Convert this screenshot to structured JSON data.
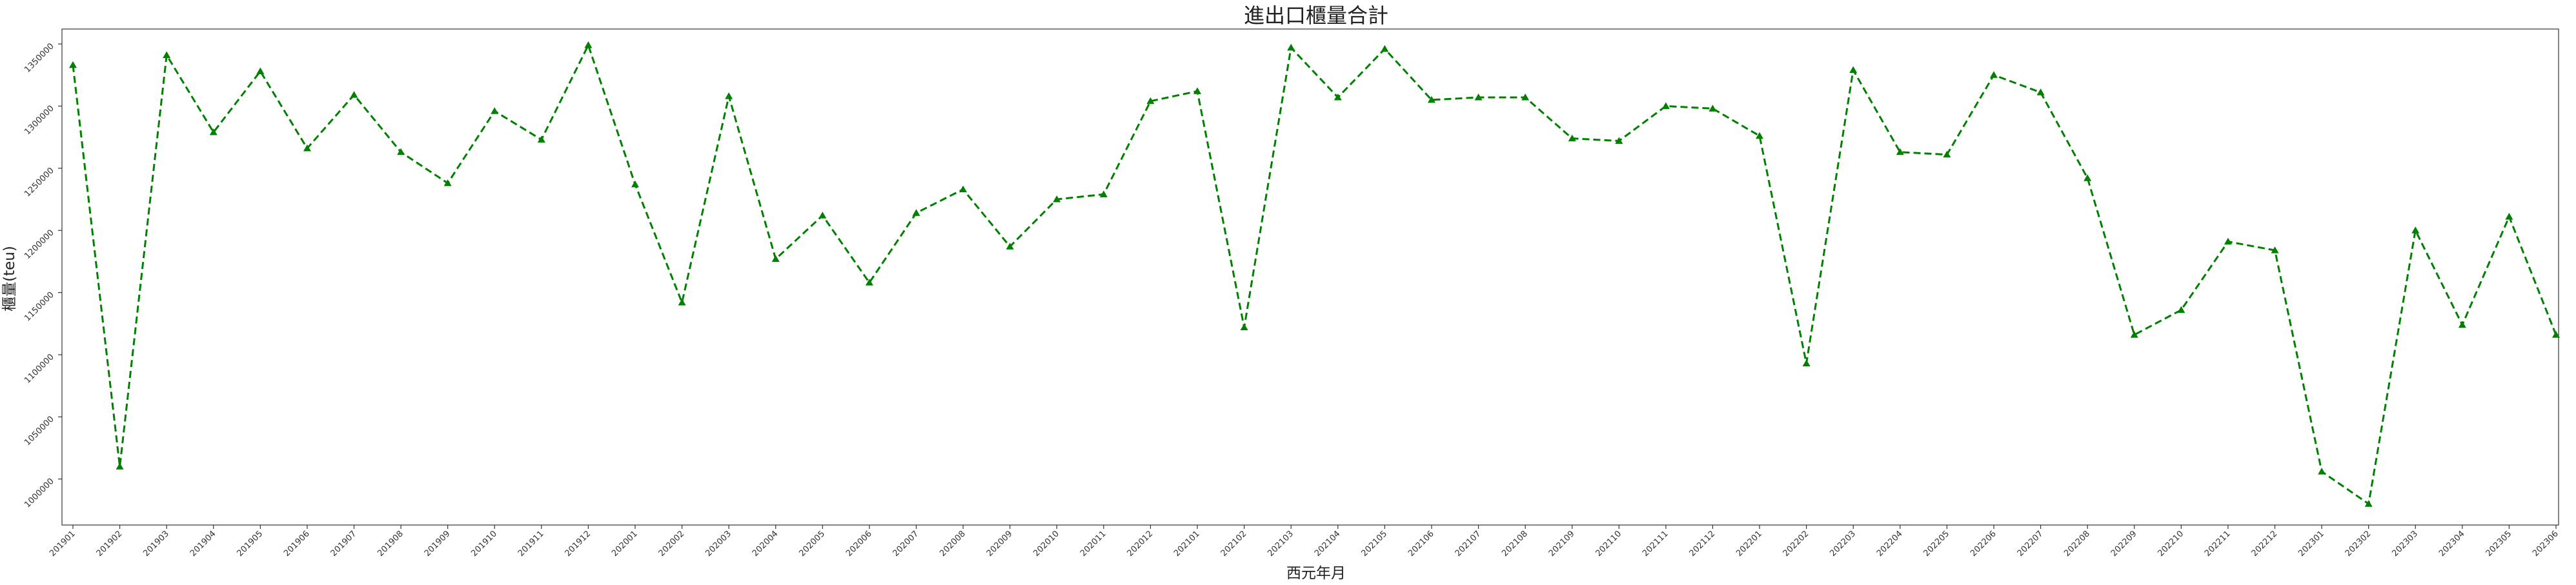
{
  "chart_data": {
    "type": "line",
    "title": "進出口櫃量合計",
    "xlabel": "西元年月",
    "ylabel": "櫃量(teu)",
    "categories": [
      "201901",
      "201902",
      "201903",
      "201904",
      "201905",
      "201906",
      "201907",
      "201908",
      "201909",
      "201910",
      "201911",
      "201912",
      "202001",
      "202002",
      "202003",
      "202004",
      "202005",
      "202006",
      "202007",
      "202008",
      "202009",
      "202010",
      "202011",
      "202012",
      "202101",
      "202102",
      "202103",
      "202104",
      "202105",
      "202106",
      "202107",
      "202108",
      "202109",
      "202110",
      "202111",
      "202112",
      "202201",
      "202202",
      "202203",
      "202204",
      "202205",
      "202206",
      "202207",
      "202208",
      "202209",
      "202210",
      "202211",
      "202212",
      "202301",
      "202302",
      "202303",
      "202304",
      "202305",
      "202306"
    ],
    "ylim": [
      963000,
      1362000
    ],
    "yticks": [
      1000000,
      1050000,
      1100000,
      1150000,
      1200000,
      1250000,
      1300000,
      1350000
    ],
    "ytick_labels": [
      "1000000",
      "1050000",
      "1100000",
      "1150000",
      "1200000",
      "1250000",
      "1300000",
      "1350000"
    ],
    "series": [
      {
        "color": "#008000",
        "linestyle": "dashed",
        "marker": "triangle",
        "values": [
          1333000,
          1010000,
          1341000,
          1279000,
          1328000,
          1266000,
          1309000,
          1263000,
          1238000,
          1296000,
          1273000,
          1349000,
          1237000,
          1142000,
          1308000,
          1177000,
          1212000,
          1158000,
          1214000,
          1233000,
          1187000,
          1225000,
          1229000,
          1304000,
          1312000,
          1122000,
          1347000,
          1307000,
          1346000,
          1305000,
          1307000,
          1307000,
          1274000,
          1272000,
          1300000,
          1298000,
          1276000,
          1093000,
          1329000,
          1263000,
          1261000,
          1325000,
          1311000,
          1242000,
          1116000,
          1136000,
          1191000,
          1184000,
          1006000,
          980000,
          1200000,
          1124000,
          1211000,
          1116000
        ]
      }
    ],
    "grid": false,
    "legend": "none"
  }
}
